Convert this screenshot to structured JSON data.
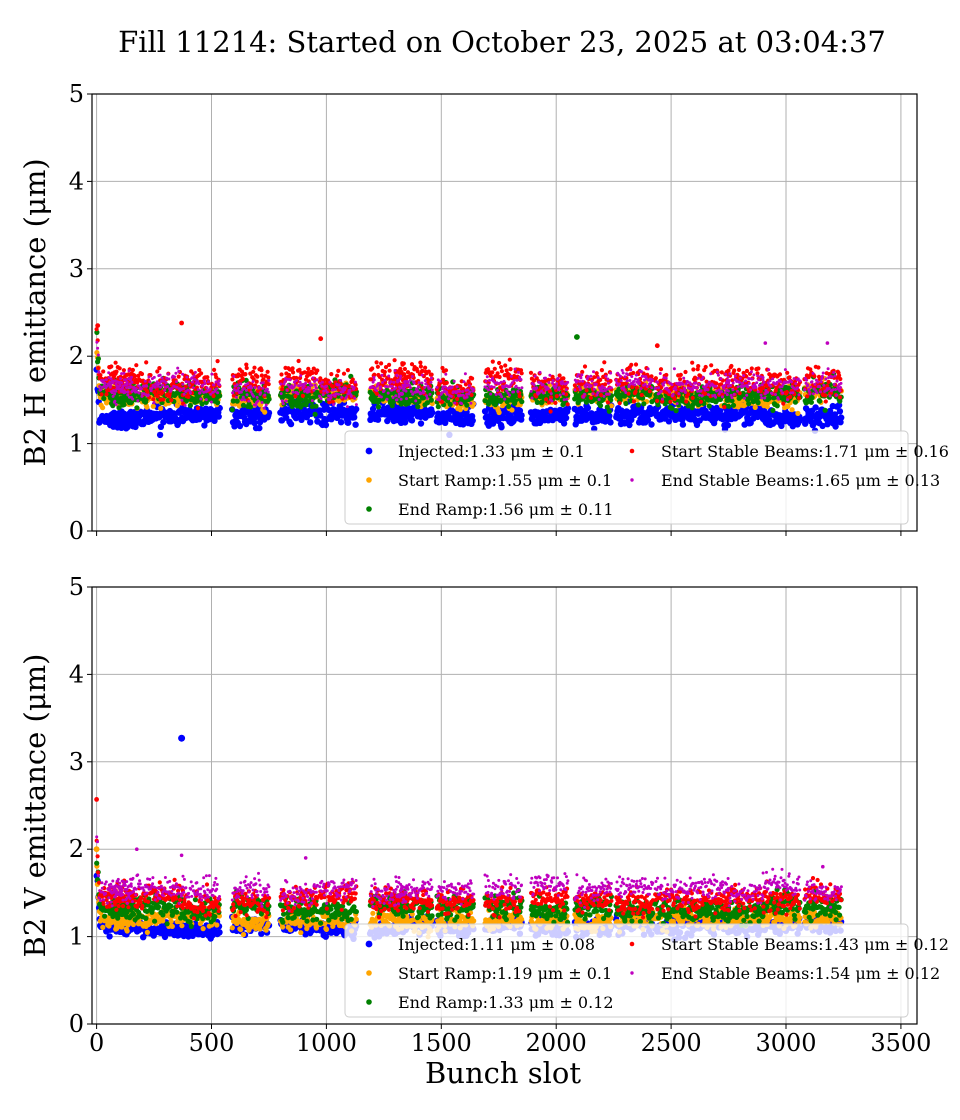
{
  "title": "Fill 11214: Started on October 23, 2025 at 03:04:37",
  "xlabel": "Bunch slot",
  "chart_data": [
    {
      "type": "scatter",
      "ylabel": "B2 H emittance (μm)",
      "xlim": [
        -20,
        3570
      ],
      "ylim": [
        0,
        5
      ],
      "x_ticks": [
        0,
        500,
        1000,
        1500,
        2000,
        2500,
        3000,
        3500
      ],
      "y_ticks": [
        0,
        1,
        2,
        3,
        4,
        5
      ],
      "grid": true,
      "legend_position": "lower-right",
      "train_starts": [
        0,
        55,
        215,
        375,
        590,
        800,
        970,
        1190,
        1300,
        1480,
        1690,
        1890,
        2080,
        2260,
        2430,
        2590,
        2740,
        2900,
        3080
      ],
      "train_length": 160,
      "series": [
        {
          "name": "Injected",
          "legend": "Injected:1.33 μm ± 0.1",
          "color": "#0000ff",
          "mean": 1.33,
          "std": 0.1,
          "marker": "large"
        },
        {
          "name": "Start Ramp",
          "legend": "Start Ramp:1.55 μm ± 0.1",
          "color": "#ffa500",
          "mean": 1.55,
          "std": 0.1,
          "marker": "medium"
        },
        {
          "name": "End Ramp",
          "legend": "End Ramp:1.56 μm ± 0.11",
          "color": "#008000",
          "mean": 1.56,
          "std": 0.11,
          "marker": "medium"
        },
        {
          "name": "Start Stable Beams",
          "legend": "Start Stable Beams:1.71 μm ± 0.16",
          "color": "#ff0000",
          "mean": 1.71,
          "std": 0.16,
          "marker": "small"
        },
        {
          "name": "End Stable Beams",
          "legend": "End Stable Beams:1.65 μm ± 0.13",
          "color": "#bf00bf",
          "mean": 1.65,
          "std": 0.13,
          "marker": "tiny"
        }
      ],
      "outliers": [
        {
          "series": "Start Stable Beams",
          "x": 5,
          "y": 2.35
        },
        {
          "series": "Start Stable Beams",
          "x": 370,
          "y": 2.38
        },
        {
          "series": "Start Stable Beams",
          "x": 975,
          "y": 2.2
        },
        {
          "series": "End Ramp",
          "x": 2090,
          "y": 2.22
        },
        {
          "series": "Start Stable Beams",
          "x": 2440,
          "y": 2.12
        },
        {
          "series": "End Stable Beams",
          "x": 3180,
          "y": 2.15
        },
        {
          "series": "End Stable Beams",
          "x": 2910,
          "y": 2.15
        }
      ]
    },
    {
      "type": "scatter",
      "ylabel": "B2 V emittance (μm)",
      "xlim": [
        -20,
        3570
      ],
      "ylim": [
        0,
        5
      ],
      "x_ticks": [
        0,
        500,
        1000,
        1500,
        2000,
        2500,
        3000,
        3500
      ],
      "y_ticks": [
        0,
        1,
        2,
        3,
        4,
        5
      ],
      "grid": true,
      "legend_position": "lower-right",
      "train_starts": [
        0,
        55,
        215,
        375,
        590,
        800,
        970,
        1190,
        1300,
        1480,
        1690,
        1890,
        2080,
        2260,
        2430,
        2590,
        2740,
        2900,
        3080
      ],
      "train_length": 160,
      "series": [
        {
          "name": "Injected",
          "legend": "Injected:1.11 μm ± 0.08",
          "color": "#0000ff",
          "mean": 1.11,
          "std": 0.08,
          "marker": "large"
        },
        {
          "name": "Start Ramp",
          "legend": "Start Ramp:1.19 μm ± 0.1",
          "color": "#ffa500",
          "mean": 1.19,
          "std": 0.1,
          "marker": "medium"
        },
        {
          "name": "End Ramp",
          "legend": "End Ramp:1.33 μm ± 0.12",
          "color": "#008000",
          "mean": 1.33,
          "std": 0.12,
          "marker": "medium"
        },
        {
          "name": "Start Stable Beams",
          "legend": "Start Stable Beams:1.43 μm ± 0.12",
          "color": "#ff0000",
          "mean": 1.43,
          "std": 0.12,
          "marker": "small"
        },
        {
          "name": "End Stable Beams",
          "legend": "End Stable Beams:1.54 μm ± 0.12",
          "color": "#bf00bf",
          "mean": 1.54,
          "std": 0.12,
          "marker": "tiny"
        }
      ],
      "outliers": [
        {
          "series": "Injected",
          "x": 370,
          "y": 3.27
        },
        {
          "series": "Start Stable Beams",
          "x": 0,
          "y": 2.57
        },
        {
          "series": "Start Ramp",
          "x": 0,
          "y": 2.0
        },
        {
          "series": "End Stable Beams",
          "x": 175,
          "y": 2.0
        },
        {
          "series": "End Stable Beams",
          "x": 370,
          "y": 1.93
        },
        {
          "series": "End Stable Beams",
          "x": 910,
          "y": 1.9
        },
        {
          "series": "End Stable Beams",
          "x": 3160,
          "y": 1.8
        }
      ]
    }
  ]
}
